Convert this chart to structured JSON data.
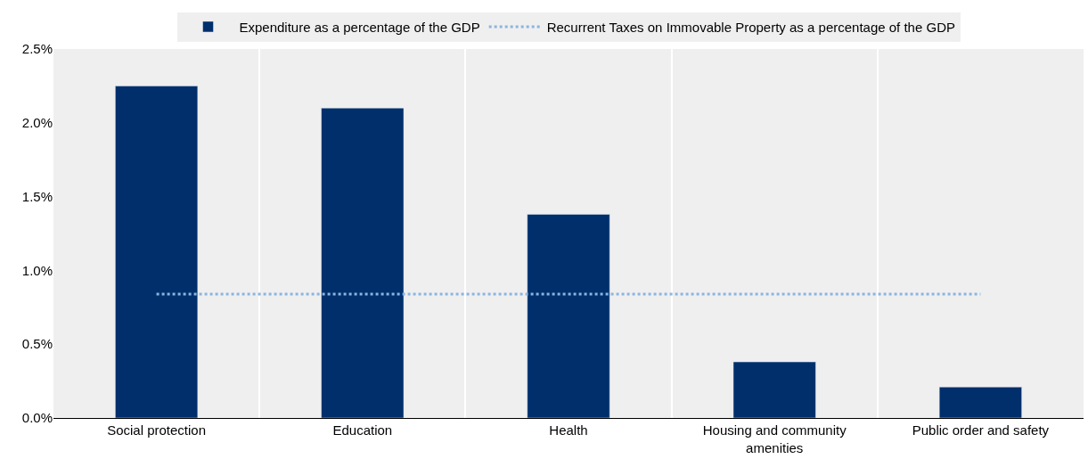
{
  "chart_data": {
    "type": "bar",
    "categories": [
      "Social protection",
      "Education",
      "Health",
      "Housing and community amenities",
      "Public order and safety"
    ],
    "series": [
      {
        "name": "Expenditure as a percentage of the GDP",
        "color": "#002f6c",
        "values": [
          2.25,
          2.1,
          1.38,
          0.38,
          0.21
        ]
      },
      {
        "name": "Recurrent Taxes on Immovable Property as a percentage of the GDP",
        "type": "line",
        "line_style": "dotted",
        "color": "#8cb4e0",
        "values": [
          0.84,
          0.84,
          0.84,
          0.84,
          0.84
        ]
      }
    ],
    "ylim": [
      0,
      2.5
    ],
    "yticks": [
      {
        "value": 0,
        "label": "0.0%"
      },
      {
        "value": 0.5,
        "label": "0.5%"
      },
      {
        "value": 1,
        "label": "1.0%"
      },
      {
        "value": 1.5,
        "label": "1.5%"
      },
      {
        "value": 2,
        "label": "2.0%"
      },
      {
        "value": 2.5,
        "label": "2.5%"
      }
    ],
    "grid": "x",
    "legend": "top",
    "marker": "none"
  }
}
